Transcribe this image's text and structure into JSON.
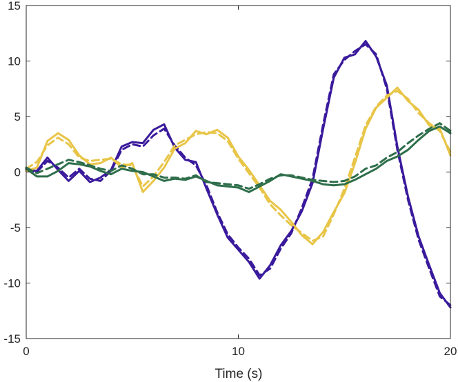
{
  "chart_data": {
    "type": "line",
    "xlabel": "Time (s)",
    "ylabel": "",
    "xlim": [
      0,
      20
    ],
    "ylim": [
      -15,
      15
    ],
    "xticks": [
      0,
      10,
      20
    ],
    "yticks": [
      -15,
      -10,
      -5,
      0,
      5,
      10,
      15
    ],
    "grid": false,
    "series": [
      {
        "color": "#3a1a9c",
        "style": "solid",
        "x": [
          0,
          0.5,
          1,
          1.5,
          2,
          2.5,
          3,
          3.5,
          4,
          4.5,
          5,
          5.5,
          6,
          6.5,
          7,
          7.5,
          8,
          8.5,
          9,
          9.5,
          10,
          10.5,
          11,
          11.5,
          12,
          12.5,
          13,
          13.5,
          14,
          14.5,
          15,
          15.5,
          16,
          16.5,
          17,
          17.5,
          18,
          18.5,
          19,
          19.5,
          20
        ],
        "y": [
          0.2,
          0.1,
          1.3,
          0.2,
          -0.8,
          0.1,
          -0.9,
          -0.5,
          0.2,
          2.3,
          2.7,
          2.6,
          3.8,
          4.3,
          2.2,
          1.1,
          0.9,
          -1.5,
          -3.8,
          -5.9,
          -7.0,
          -8.1,
          -9.6,
          -8.4,
          -6.6,
          -5.3,
          -3.5,
          -1.0,
          3.9,
          8.5,
          10.3,
          10.6,
          11.8,
          10.4,
          7.8,
          2.3,
          -2.2,
          -5.8,
          -8.4,
          -10.9,
          -12.2
        ]
      },
      {
        "color": "#3a1a9c",
        "style": "dashed",
        "x": [
          0,
          0.5,
          1,
          1.5,
          2,
          2.5,
          3,
          3.5,
          4,
          4.5,
          5,
          5.5,
          6,
          6.5,
          7,
          7.5,
          8,
          8.5,
          9,
          9.5,
          10,
          10.5,
          11,
          11.5,
          12,
          12.5,
          13,
          13.5,
          14,
          14.5,
          15,
          15.5,
          16,
          16.5,
          17,
          17.5,
          18,
          18.5,
          19,
          19.5,
          20
        ],
        "y": [
          0.1,
          0.0,
          1.0,
          0.4,
          -0.5,
          0.3,
          -0.6,
          -0.8,
          0.1,
          2.0,
          2.5,
          2.3,
          3.3,
          3.9,
          2.4,
          1.3,
          0.6,
          -1.2,
          -3.6,
          -5.6,
          -6.8,
          -7.8,
          -9.3,
          -8.7,
          -6.9,
          -5.5,
          -3.2,
          -0.6,
          4.3,
          8.8,
          10.1,
          10.9,
          11.5,
          10.6,
          7.5,
          2.0,
          -2.5,
          -6.1,
          -8.7,
          -11.2,
          -12.0
        ]
      },
      {
        "color": "#e8c547",
        "style": "solid",
        "x": [
          0,
          0.5,
          1,
          1.5,
          2,
          2.5,
          3,
          3.5,
          4,
          4.5,
          5,
          5.5,
          6,
          6.5,
          7,
          7.5,
          8,
          8.5,
          9,
          9.5,
          10,
          10.5,
          11,
          11.5,
          12,
          12.5,
          13,
          13.5,
          14,
          14.5,
          15,
          15.5,
          16,
          16.5,
          17,
          17.5,
          18,
          18.5,
          19,
          19.5,
          20
        ],
        "y": [
          0.1,
          0.4,
          2.8,
          3.5,
          2.9,
          1.5,
          0.7,
          0.8,
          1.3,
          0.4,
          0.8,
          -1.8,
          -0.8,
          0.4,
          2.1,
          2.6,
          3.7,
          3.4,
          3.8,
          3.1,
          1.4,
          0.2,
          -1.2,
          -2.6,
          -3.4,
          -4.5,
          -5.7,
          -6.5,
          -5.4,
          -3.6,
          -1.9,
          0.8,
          3.9,
          5.8,
          6.7,
          7.6,
          6.4,
          5.6,
          4.2,
          3.9,
          1.5
        ]
      },
      {
        "color": "#e8c547",
        "style": "dashed",
        "x": [
          0,
          0.5,
          1,
          1.5,
          2,
          2.5,
          3,
          3.5,
          4,
          4.5,
          5,
          5.5,
          6,
          6.5,
          7,
          7.5,
          8,
          8.5,
          9,
          9.5,
          10,
          10.5,
          11,
          11.5,
          12,
          12.5,
          13,
          13.5,
          14,
          14.5,
          15,
          15.5,
          16,
          16.5,
          17,
          17.5,
          18,
          18.5,
          19,
          19.5,
          20
        ],
        "y": [
          0.3,
          0.9,
          2.4,
          3.1,
          2.5,
          1.3,
          1.0,
          1.1,
          1.2,
          0.7,
          0.6,
          -1.3,
          -0.4,
          0.9,
          2.4,
          2.9,
          3.4,
          3.6,
          3.5,
          2.8,
          1.2,
          -0.1,
          -1.4,
          -2.9,
          -3.9,
          -4.8,
          -5.5,
          -6.2,
          -5.8,
          -3.8,
          -1.5,
          1.3,
          4.2,
          5.9,
          6.9,
          7.3,
          6.6,
          5.3,
          4.4,
          3.7,
          1.8
        ]
      },
      {
        "color": "#2e6e4a",
        "style": "solid",
        "x": [
          0,
          0.5,
          1,
          1.5,
          2,
          2.5,
          3,
          3.5,
          4,
          4.5,
          5,
          5.5,
          6,
          6.5,
          7,
          7.5,
          8,
          8.5,
          9,
          9.5,
          10,
          10.5,
          11,
          11.5,
          12,
          12.5,
          13,
          13.5,
          14,
          14.5,
          15,
          15.5,
          16,
          16.5,
          17,
          17.5,
          18,
          18.5,
          19,
          19.5,
          20
        ],
        "y": [
          0.3,
          -0.4,
          -0.4,
          0.1,
          0.8,
          0.7,
          0.5,
          0.1,
          -0.2,
          0.3,
          0.1,
          0.0,
          -0.4,
          -0.8,
          -0.6,
          -0.7,
          -0.4,
          -0.8,
          -1.2,
          -1.3,
          -1.4,
          -1.8,
          -1.3,
          -0.8,
          -0.2,
          -0.4,
          -0.6,
          -0.8,
          -1.1,
          -1.2,
          -1.1,
          -0.7,
          -0.2,
          0.3,
          1.0,
          1.4,
          2.0,
          2.9,
          3.7,
          4.1,
          3.5
        ]
      },
      {
        "color": "#2e6e4a",
        "style": "dashed",
        "x": [
          0,
          0.5,
          1,
          1.5,
          2,
          2.5,
          3,
          3.5,
          4,
          4.5,
          5,
          5.5,
          6,
          6.5,
          7,
          7.5,
          8,
          8.5,
          9,
          9.5,
          10,
          10.5,
          11,
          11.5,
          12,
          12.5,
          13,
          13.5,
          14,
          14.5,
          15,
          15.5,
          16,
          16.5,
          17,
          17.5,
          18,
          18.5,
          19,
          19.5,
          20
        ],
        "y": [
          0.4,
          -0.1,
          0.3,
          0.7,
          1.1,
          0.9,
          0.6,
          0.3,
          0.1,
          0.6,
          0.3,
          -0.2,
          -0.2,
          -0.5,
          -0.5,
          -0.6,
          -0.3,
          -0.9,
          -1.0,
          -1.1,
          -1.2,
          -1.5,
          -1.1,
          -0.6,
          -0.3,
          -0.3,
          -0.5,
          -0.7,
          -0.8,
          -0.9,
          -0.8,
          -0.4,
          0.3,
          0.6,
          1.3,
          1.8,
          2.6,
          3.3,
          3.9,
          4.4,
          3.7
        ]
      }
    ]
  }
}
